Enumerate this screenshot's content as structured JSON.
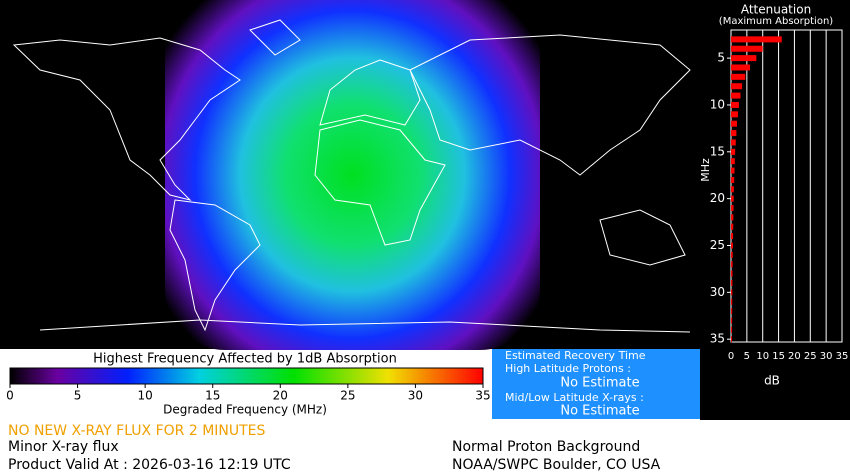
{
  "chart_data": {
    "type": "hbar",
    "title": "Attenuation",
    "subtitle": "(Maximum Absorption)",
    "x_label": "dB",
    "y_label": "MHz",
    "color": "#ff0000",
    "y": [
      3,
      4,
      5,
      6,
      7,
      8,
      9,
      10,
      11,
      12,
      13,
      14,
      15,
      16,
      17,
      18,
      19,
      20,
      21,
      22,
      23,
      24,
      25,
      26,
      27,
      28,
      29,
      30,
      31,
      32,
      33,
      34,
      35
    ],
    "values": [
      16,
      10,
      8,
      6,
      4.5,
      3.5,
      3,
      2.5,
      2.2,
      1.9,
      1.7,
      1.5,
      1.3,
      1.2,
      1.1,
      1,
      0.9,
      0.85,
      0.8,
      0.75,
      0.7,
      0.65,
      0.6,
      0.55,
      0.5,
      0.48,
      0.45,
      0.42,
      0.4,
      0.38,
      0.36,
      0.34,
      0.32
    ],
    "xlim": [
      0,
      35
    ],
    "xticks": [
      0,
      5,
      10,
      15,
      20,
      25,
      30,
      35
    ],
    "ylim": [
      2,
      35.3
    ],
    "yticks": [
      5,
      10,
      15,
      20,
      25,
      30,
      35
    ],
    "grid": true
  },
  "colorbar": {
    "title": "Highest Frequency Affected by 1dB Absorption",
    "label": "Degraded Frequency (MHz)",
    "range": [
      0,
      35
    ],
    "ticks": [
      0,
      5,
      10,
      15,
      20,
      25,
      30,
      35
    ]
  },
  "recovery": {
    "title": "Estimated Recovery Time",
    "high_label": "High Latitude Protons :",
    "high_value": "No Estimate",
    "mid_label": "Mid/Low Latitude X-rays :",
    "mid_value": "No Estimate"
  },
  "footer": {
    "alert": "NO NEW X-RAY FLUX FOR 2 MINUTES",
    "xray": "Minor X-ray flux",
    "valid": "Product Valid At : 2026-03-16 12:19 UTC",
    "proton": "Normal Proton Background",
    "source": "NOAA/SWPC Boulder, CO USA"
  }
}
